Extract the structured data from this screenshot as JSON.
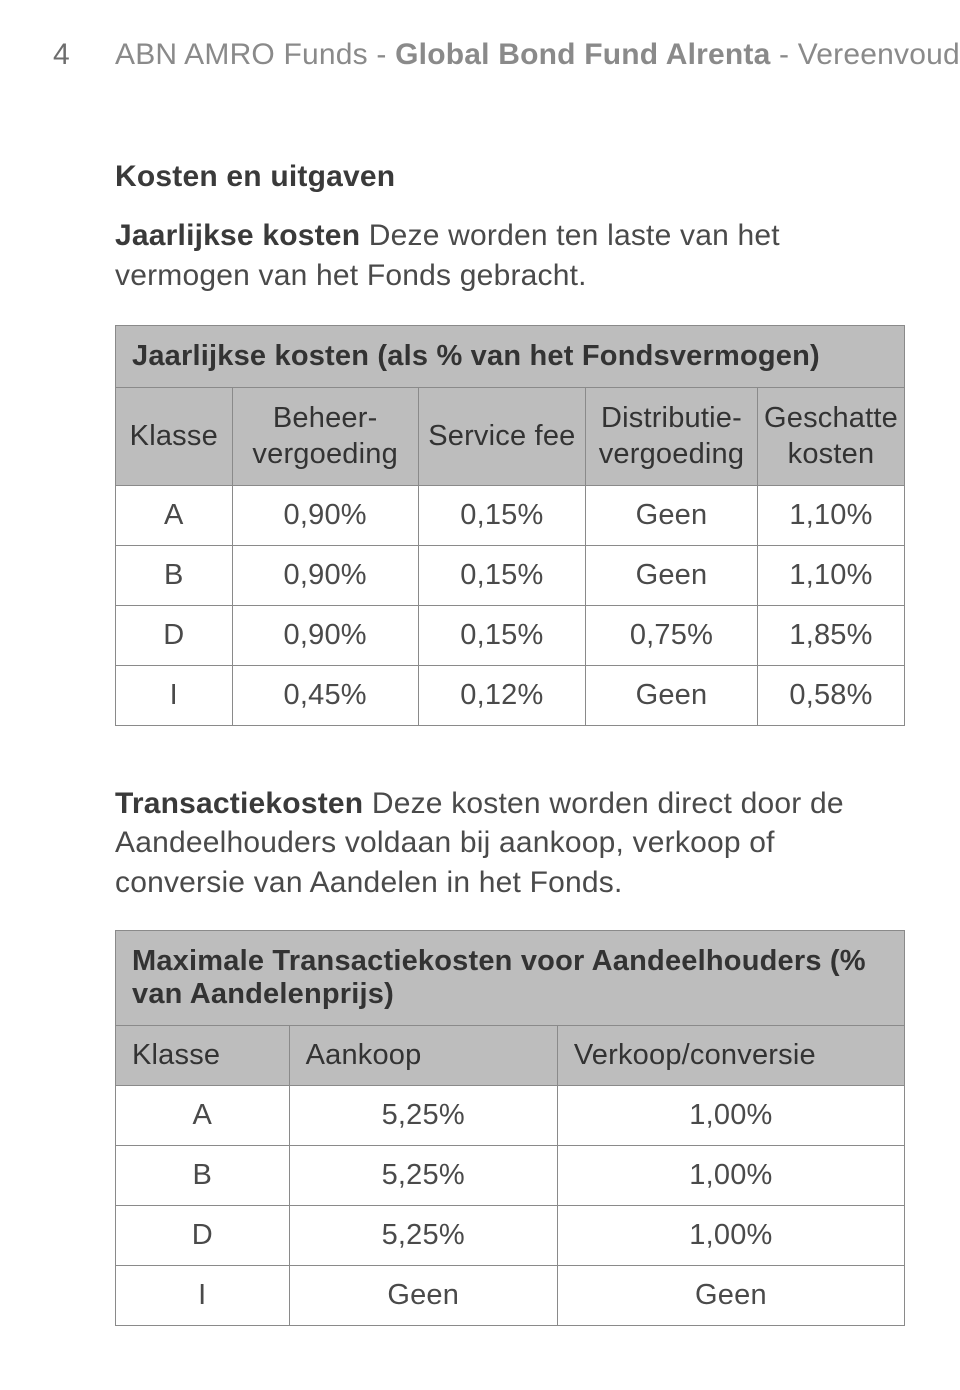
{
  "page_number": "4",
  "running_head": {
    "pre": "ABN AMRO Funds - ",
    "bold": "Global Bond Fund Alrenta",
    "post": " - Vereenvoudigd Prospectus"
  },
  "section_title": "Kosten en uitgaven",
  "intro1_bold": "Jaarlijkse kosten",
  "intro1_rest": " Deze worden ten laste van het vermogen van het Fonds gebracht.",
  "table1": {
    "title": "Jaarlijkse kosten (als % van het Fondsvermogen)",
    "columns": [
      "Klasse",
      "Beheer-\nvergoeding",
      "Service fee",
      "Distributie-\nvergoeding",
      "Geschatte\nkosten"
    ],
    "rows": [
      [
        "A",
        "0,90%",
        "0,15%",
        "Geen",
        "1,10%"
      ],
      [
        "B",
        "0,90%",
        "0,15%",
        "Geen",
        "1,10%"
      ],
      [
        "D",
        "0,90%",
        "0,15%",
        "0,75%",
        "1,85%"
      ],
      [
        "I",
        "0,45%",
        "0,12%",
        "Geen",
        "0,58%"
      ]
    ]
  },
  "intro2_bold": "Transactiekosten",
  "intro2_rest": " Deze kosten worden direct door de Aandeelhouders voldaan bij aankoop, verkoop of conversie van Aandelen in het Fonds.",
  "table2": {
    "title": "Maximale Transactiekosten voor Aandeelhouders (% van Aandelenprijs)",
    "columns": [
      "Klasse",
      "Aankoop",
      "Verkoop/conversie"
    ],
    "rows": [
      [
        "A",
        "5,25%",
        "1,00%"
      ],
      [
        "B",
        "5,25%",
        "1,00%"
      ],
      [
        "D",
        "5,25%",
        "1,00%"
      ],
      [
        "I",
        "Geen",
        "Geen"
      ]
    ]
  }
}
